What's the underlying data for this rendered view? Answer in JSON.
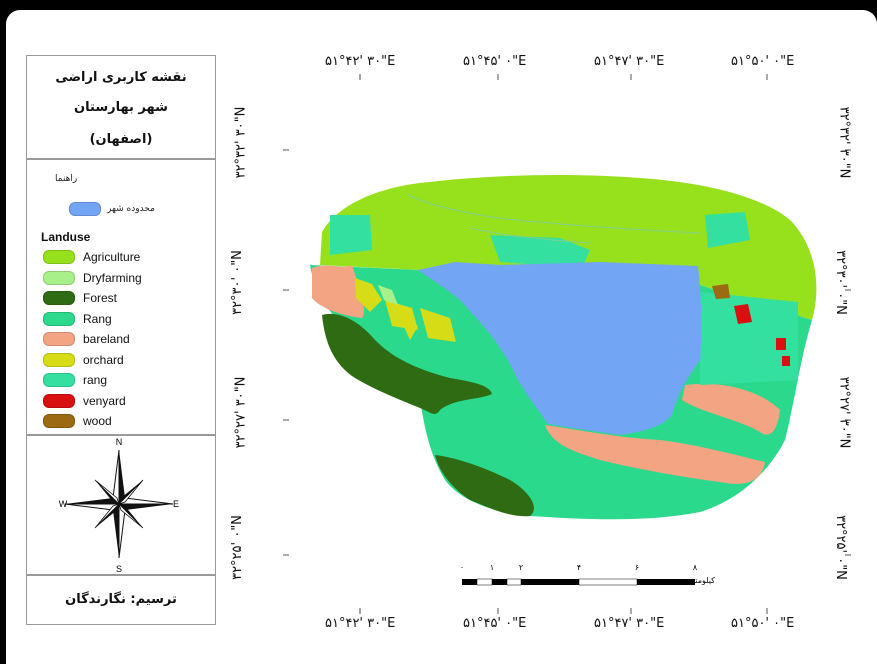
{
  "title": {
    "line1": "نقشه کاربری اراضی",
    "line2": "شهر بهارستان",
    "line3": "(اصفهان)"
  },
  "guide_label": "راهنما",
  "boundary_label": "محدوده شهر",
  "landuse_heading": "Landuse",
  "legend": [
    {
      "label": "Agriculture",
      "color": "#97e01c"
    },
    {
      "label": "Dryfarming",
      "color": "#a8f08a"
    },
    {
      "label": "Forest",
      "color": "#2e6b12"
    },
    {
      "label": "Rang",
      "color": "#2bd98c"
    },
    {
      "label": "bareland",
      "color": "#f2a483"
    },
    {
      "label": "orchard",
      "color": "#d6dc16"
    },
    {
      "label": "rang",
      "color": "#33e0a0"
    },
    {
      "label": "venyard",
      "color": "#d81010"
    },
    {
      "label": "wood",
      "color": "#9c6a12"
    }
  ],
  "boundary_color": "#73a5f5",
  "credit": "ترسیم: نگارندگان",
  "top_coords": [
    "۵۱°۴۲' ۳۰\"E",
    "۵۱°۴۵' ۰\"E",
    "۵۱°۴۷' ۳۰\"E",
    "۵۱°۵۰' ۰\"E"
  ],
  "bottom_coords": [
    "۵۱°۴۲' ۳۰\"E",
    "۵۱°۴۵' ۰\"E",
    "۵۱°۴۷' ۳۰\"E",
    "۵۱°۵۰' ۰\"E"
  ],
  "left_coords": [
    "۳۲°۳۲' ۳۰\"N",
    "۳۲°۳۰' ۰\"N",
    "۳۲°۲۷' ۳۰\"N",
    "۳۲°۲۵' ۰\"N"
  ],
  "right_coords": [
    "۳۲°۳۲' ۳۰\"N",
    "۳۲°۳۰' ۰\"N",
    "۳۲°۲۷' ۳۰\"N",
    "۳۲°۲۵' ۰\"N"
  ],
  "scale": {
    "ticks": [
      "۰",
      "۱",
      "۲",
      "۴",
      "۶",
      "۸"
    ],
    "unit": "کیلومتر"
  },
  "compass": {
    "n": "N",
    "s": "S",
    "e": "E",
    "w": "W"
  }
}
